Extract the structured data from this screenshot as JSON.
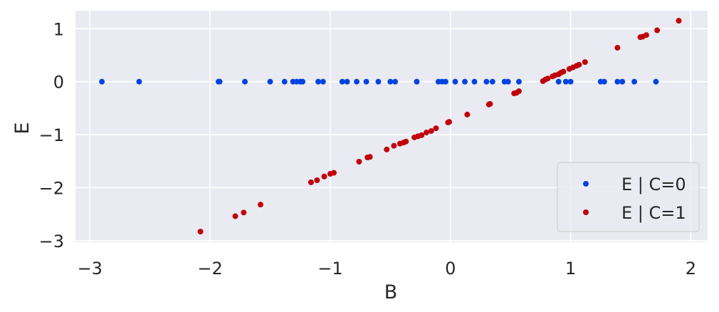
{
  "chart_data": {
    "type": "scatter",
    "xlabel": "B",
    "ylabel": "E",
    "xlim": [
      -3.12,
      2.14
    ],
    "ylim": [
      -3.03,
      1.34
    ],
    "xticks": [
      -3,
      -2,
      -1,
      0,
      1,
      2
    ],
    "yticks": [
      -3,
      -2,
      -1,
      0,
      1
    ],
    "xtick_labels": [
      "−3",
      "−2",
      "−1",
      "0",
      "1",
      "2"
    ],
    "ytick_labels": [
      "−3",
      "−2",
      "−1",
      "0",
      "1"
    ],
    "grid": true,
    "legend_position": "lower-right",
    "series": [
      {
        "name": "E | C=0",
        "color": "#0343df",
        "points": [
          [
            -2.9,
            0
          ],
          [
            -2.59,
            0
          ],
          [
            -1.93,
            0
          ],
          [
            -1.92,
            0
          ],
          [
            -1.71,
            0
          ],
          [
            -1.5,
            0
          ],
          [
            -1.38,
            0
          ],
          [
            -1.31,
            0
          ],
          [
            -1.28,
            0
          ],
          [
            -1.25,
            0
          ],
          [
            -1.23,
            0
          ],
          [
            -1.1,
            0
          ],
          [
            -1.06,
            0
          ],
          [
            -0.9,
            0
          ],
          [
            -0.86,
            0
          ],
          [
            -0.78,
            0
          ],
          [
            -0.7,
            0
          ],
          [
            -0.6,
            0
          ],
          [
            -0.5,
            0
          ],
          [
            -0.46,
            0
          ],
          [
            -0.28,
            0
          ],
          [
            -0.1,
            0
          ],
          [
            -0.07,
            0
          ],
          [
            -0.04,
            0
          ],
          [
            0.04,
            0
          ],
          [
            0.12,
            0
          ],
          [
            0.2,
            0
          ],
          [
            0.3,
            0
          ],
          [
            0.35,
            0
          ],
          [
            0.45,
            0
          ],
          [
            0.48,
            0
          ],
          [
            0.57,
            0
          ],
          [
            0.9,
            0
          ],
          [
            0.96,
            0
          ],
          [
            1.0,
            0
          ],
          [
            1.25,
            0
          ],
          [
            1.28,
            0
          ],
          [
            1.39,
            0
          ],
          [
            1.43,
            0
          ],
          [
            1.53,
            0
          ],
          [
            1.71,
            0
          ]
        ]
      },
      {
        "name": "E | C=1",
        "color": "#c0000a",
        "points": [
          [
            -2.08,
            -2.83
          ],
          [
            -1.79,
            -2.54
          ],
          [
            -1.72,
            -2.47
          ],
          [
            -1.58,
            -2.32
          ],
          [
            -1.16,
            -1.9
          ],
          [
            -1.11,
            -1.86
          ],
          [
            -1.05,
            -1.79
          ],
          [
            -1.0,
            -1.74
          ],
          [
            -0.97,
            -1.72
          ],
          [
            -0.76,
            -1.51
          ],
          [
            -0.69,
            -1.43
          ],
          [
            -0.67,
            -1.42
          ],
          [
            -0.53,
            -1.28
          ],
          [
            -0.47,
            -1.21
          ],
          [
            -0.42,
            -1.17
          ],
          [
            -0.39,
            -1.15
          ],
          [
            -0.37,
            -1.13
          ],
          [
            -0.3,
            -1.05
          ],
          [
            -0.27,
            -1.03
          ],
          [
            -0.24,
            -1.01
          ],
          [
            -0.2,
            -0.96
          ],
          [
            -0.16,
            -0.93
          ],
          [
            -0.12,
            -0.88
          ],
          [
            -0.02,
            -0.77
          ],
          [
            -0.01,
            -0.76
          ],
          [
            0.14,
            -0.62
          ],
          [
            0.32,
            -0.43
          ],
          [
            0.33,
            -0.42
          ],
          [
            0.53,
            -0.22
          ],
          [
            0.55,
            -0.21
          ],
          [
            0.57,
            -0.18
          ],
          [
            0.77,
            0.01
          ],
          [
            0.79,
            0.04
          ],
          [
            0.81,
            0.06
          ],
          [
            0.85,
            0.1
          ],
          [
            0.87,
            0.12
          ],
          [
            0.9,
            0.14
          ],
          [
            0.92,
            0.17
          ],
          [
            0.94,
            0.19
          ],
          [
            0.99,
            0.24
          ],
          [
            1.02,
            0.27
          ],
          [
            1.05,
            0.3
          ],
          [
            1.07,
            0.32
          ],
          [
            1.12,
            0.37
          ],
          [
            1.39,
            0.64
          ],
          [
            1.58,
            0.84
          ],
          [
            1.6,
            0.85
          ],
          [
            1.63,
            0.88
          ],
          [
            1.72,
            0.97
          ],
          [
            1.9,
            1.15
          ]
        ]
      }
    ]
  }
}
